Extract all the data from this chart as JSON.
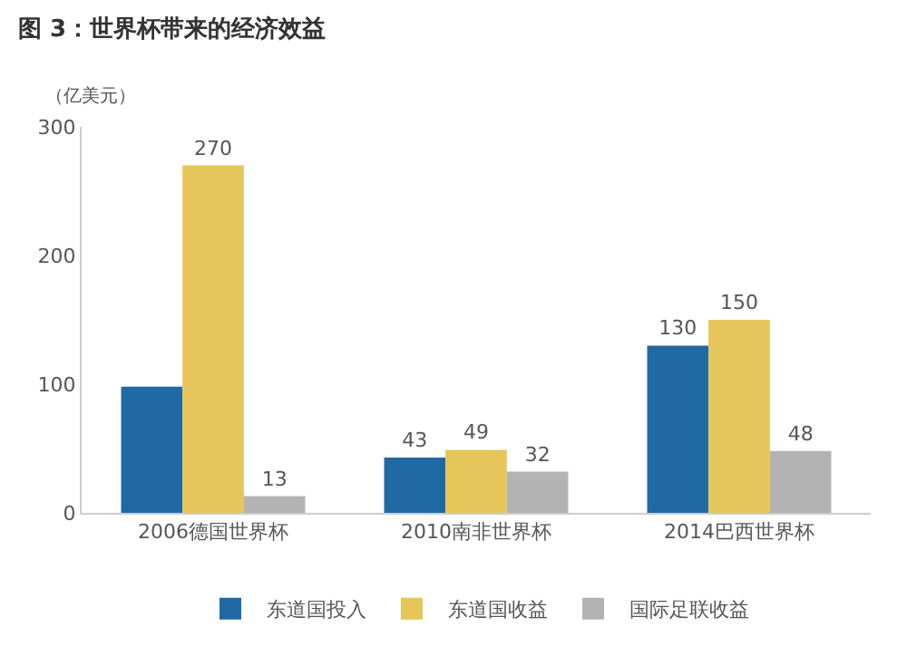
{
  "chart_data": {
    "type": "bar",
    "title": "图 3：世界杯带来的经济效益",
    "ylabel": "（亿美元）",
    "categories": [
      "2006德国世界杯",
      "2010南非世界杯",
      "2014巴西世界杯"
    ],
    "series": [
      {
        "name": "东道国投入",
        "color": "#1f6aa5",
        "values": [
          98,
          43,
          130
        ],
        "value_labels": [
          null,
          "43",
          "130"
        ]
      },
      {
        "name": "东道国收益",
        "color": "#e6c55a",
        "values": [
          270,
          49,
          150
        ],
        "value_labels": [
          "270",
          "49",
          "150"
        ]
      },
      {
        "name": "国际足联收益",
        "color": "#b3b3b3",
        "values": [
          13,
          32,
          48
        ],
        "value_labels": [
          "13",
          "32",
          "48"
        ]
      }
    ],
    "ylim": [
      0,
      300
    ],
    "yticks": [
      0,
      100,
      200,
      300
    ],
    "legend": "bottom"
  }
}
